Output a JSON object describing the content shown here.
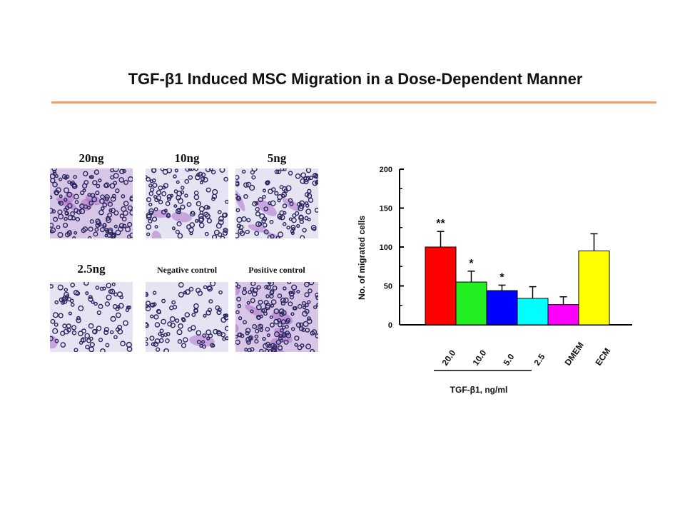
{
  "page": {
    "title": "TGF-β1 Induced MSC Migration in a Dose-Dependent Manner",
    "rule_color": "#f0a060"
  },
  "micrographs": {
    "panels": [
      {
        "label": "20ng",
        "stain": "heavy"
      },
      {
        "label": "10ng",
        "stain": "medium"
      },
      {
        "label": "5ng",
        "stain": "medium"
      },
      {
        "label": "2.5ng",
        "stain": "light"
      },
      {
        "label": "Negative control",
        "stain": "light"
      },
      {
        "label": "Positive control",
        "stain": "heavy"
      }
    ]
  },
  "chart_data": {
    "type": "bar",
    "categories": [
      "20.0",
      "10.0",
      "5.0",
      "2.5",
      "DMEM",
      "ECM"
    ],
    "values": [
      100,
      55,
      44,
      34,
      26,
      95
    ],
    "errors": [
      20,
      14,
      7,
      15,
      10,
      22
    ],
    "significance": [
      "**",
      "*",
      "*",
      "",
      "",
      ""
    ],
    "colors": [
      "#ff0000",
      "#22ee22",
      "#0000ff",
      "#00ffff",
      "#ff00ff",
      "#ffff00"
    ],
    "ylabel": "No. of migrated cells",
    "xlabel": "TGF-β1, ng/ml",
    "ylim": [
      0,
      200
    ],
    "yticks": [
      0,
      50,
      100,
      150,
      200
    ],
    "grid": false
  }
}
